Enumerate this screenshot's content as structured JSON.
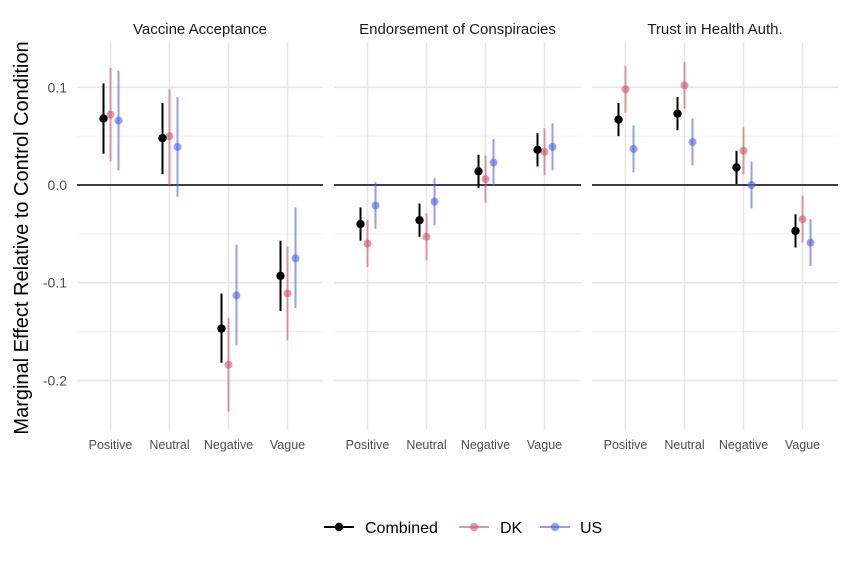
{
  "chart_data": {
    "type": "scatter",
    "subtype": "point-range dot plot, faceted",
    "ylabel": "Marginal Effect Relative to Control Condition",
    "xlabel": "",
    "ylim": [
      -0.245,
      0.143
    ],
    "yticks": [
      0.1,
      0.0,
      -0.1,
      -0.2
    ],
    "ytick_labels": [
      "0.1",
      "0.0",
      "-0.1",
      "-0.2"
    ],
    "reference_line": 0,
    "grid": true,
    "legend_position": "bottom",
    "categories": [
      "Positive",
      "Neutral",
      "Negative",
      "Vague"
    ],
    "series_styles": [
      {
        "name": "Combined",
        "color": "#000000",
        "opacity": 1.0
      },
      {
        "name": "DK",
        "color": "#c8566b",
        "opacity": 0.6
      },
      {
        "name": "US",
        "color": "#4f5fe0",
        "opacity": 0.6
      }
    ],
    "facets": [
      {
        "title": "Vaccine Acceptance",
        "series": [
          {
            "name": "Combined",
            "estimates": [
              0.068,
              0.048,
              -0.147,
              -0.093
            ],
            "lower": [
              0.032,
              0.011,
              -0.182,
              -0.129
            ],
            "upper": [
              0.104,
              0.084,
              -0.111,
              -0.057
            ]
          },
          {
            "name": "DK",
            "estimates": [
              0.072,
              0.05,
              -0.184,
              -0.111
            ],
            "lower": [
              0.024,
              0.0,
              -0.232,
              -0.159
            ],
            "upper": [
              0.12,
              0.098,
              -0.136,
              -0.063
            ]
          },
          {
            "name": "US",
            "estimates": [
              0.066,
              0.039,
              -0.113,
              -0.075
            ],
            "lower": [
              0.015,
              -0.012,
              -0.164,
              -0.126
            ],
            "upper": [
              0.117,
              0.09,
              -0.061,
              -0.023
            ]
          }
        ]
      },
      {
        "title": "Endorsement of Conspiracies",
        "series": [
          {
            "name": "Combined",
            "estimates": [
              -0.04,
              -0.036,
              0.014,
              0.036
            ],
            "lower": [
              -0.057,
              -0.053,
              -0.003,
              0.019
            ],
            "upper": [
              -0.023,
              -0.019,
              0.031,
              0.053
            ]
          },
          {
            "name": "DK",
            "estimates": [
              -0.06,
              -0.053,
              0.006,
              0.034
            ],
            "lower": [
              -0.084,
              -0.077,
              -0.018,
              0.01
            ],
            "upper": [
              -0.036,
              -0.029,
              0.03,
              0.058
            ]
          },
          {
            "name": "US",
            "estimates": [
              -0.021,
              -0.017,
              0.023,
              0.039
            ],
            "lower": [
              -0.045,
              -0.041,
              -0.001,
              0.015
            ],
            "upper": [
              0.003,
              0.007,
              0.047,
              0.063
            ]
          }
        ]
      },
      {
        "title": "Trust in Health Auth.",
        "series": [
          {
            "name": "Combined",
            "estimates": [
              0.067,
              0.073,
              0.018,
              -0.047
            ],
            "lower": [
              0.05,
              0.056,
              0.001,
              -0.064
            ],
            "upper": [
              0.084,
              0.09,
              0.035,
              -0.03
            ]
          },
          {
            "name": "DK",
            "estimates": [
              0.098,
              0.102,
              0.035,
              -0.035
            ],
            "lower": [
              0.074,
              0.078,
              0.011,
              -0.059
            ],
            "upper": [
              0.122,
              0.126,
              0.059,
              -0.011
            ]
          },
          {
            "name": "US",
            "estimates": [
              0.037,
              0.044,
              0.0,
              -0.059
            ],
            "lower": [
              0.013,
              0.02,
              -0.024,
              -0.083
            ],
            "upper": [
              0.061,
              0.068,
              0.024,
              -0.035
            ]
          }
        ]
      }
    ]
  }
}
